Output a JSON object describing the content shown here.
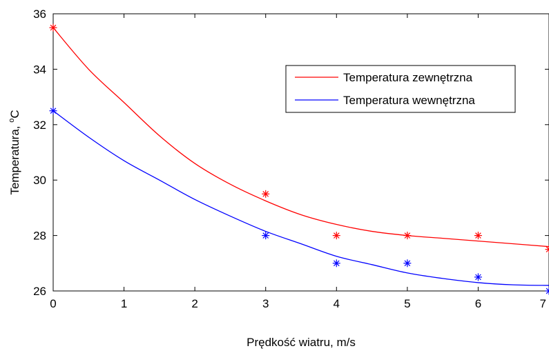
{
  "chart_data": {
    "type": "line",
    "xlabel": "Prędkość wiatru, m/s",
    "ylabel": "Temperatura, ",
    "ylabel_unit_sup": "o",
    "ylabel_unit": "C",
    "xlim": [
      0,
      7
    ],
    "ylim": [
      26,
      36
    ],
    "xticks": [
      "0",
      "1",
      "2",
      "3",
      "4",
      "5",
      "6",
      "7"
    ],
    "yticks": [
      "26",
      "28",
      "30",
      "32",
      "34",
      "36"
    ],
    "grid": false,
    "legend_position": "top-right",
    "series": [
      {
        "name": "Temperatura zewnętrzna",
        "color": "#ff0000",
        "measured": {
          "x": [
            0,
            3,
            4,
            5,
            6,
            7
          ],
          "y": [
            35.5,
            29.5,
            28,
            28,
            28,
            27.5
          ]
        },
        "fit": {
          "x": [
            0,
            0.5,
            1,
            1.5,
            2,
            2.5,
            3,
            3.5,
            4,
            4.5,
            5,
            5.5,
            6,
            6.5,
            7
          ],
          "y": [
            35.5,
            34.0,
            32.8,
            31.6,
            30.6,
            29.85,
            29.25,
            28.75,
            28.4,
            28.15,
            28.0,
            27.9,
            27.8,
            27.7,
            27.6
          ]
        }
      },
      {
        "name": "Temperatura wewnętrzna",
        "color": "#0000ff",
        "measured": {
          "x": [
            0,
            3,
            4,
            5,
            6,
            7
          ],
          "y": [
            32.5,
            28,
            27,
            27,
            26.5,
            26
          ]
        },
        "fit": {
          "x": [
            0,
            0.5,
            1,
            1.5,
            2,
            2.5,
            3,
            3.5,
            4,
            4.5,
            5,
            5.5,
            6,
            6.5,
            7
          ],
          "y": [
            32.5,
            31.55,
            30.7,
            30.0,
            29.3,
            28.7,
            28.15,
            27.7,
            27.25,
            26.95,
            26.65,
            26.45,
            26.3,
            26.22,
            26.2
          ]
        }
      }
    ]
  }
}
